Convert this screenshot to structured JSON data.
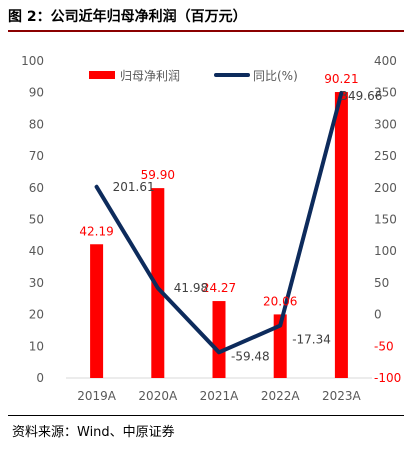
{
  "figure": {
    "title": "图 2：公司近年归母净利润（百万元）",
    "source": "资料来源：Wind、中原证券"
  },
  "colors": {
    "bar": "#ff0000",
    "line": "#0d2b5c",
    "left_axis_text": "#595959",
    "right_axis_text": "#595959",
    "right_axis_negative": "#ff0000",
    "bar_label": "#ff0000",
    "line_label": "#404040",
    "title_rule": "#8b0000"
  },
  "chart_data": {
    "type": "bar",
    "categories": [
      "2019A",
      "2020A",
      "2021A",
      "2022A",
      "2023A"
    ],
    "series": [
      {
        "name": "归母净利润",
        "type": "bar",
        "axis": "left",
        "values": [
          42.19,
          59.9,
          24.27,
          20.06,
          90.21
        ],
        "labels": [
          "42.19",
          "59.90",
          "24.27",
          "20.06",
          "90.21"
        ]
      },
      {
        "name": "同比(%)",
        "type": "line",
        "axis": "right",
        "values": [
          201.61,
          41.98,
          -59.48,
          -17.34,
          349.66
        ],
        "labels": [
          "201.61",
          "41.98",
          "-59.48",
          "-17.34",
          "349.66"
        ]
      }
    ],
    "left_axis": {
      "ylim": [
        0,
        100
      ],
      "ticks": [
        "0",
        "10",
        "20",
        "30",
        "40",
        "50",
        "60",
        "70",
        "80",
        "90",
        "100"
      ]
    },
    "right_axis": {
      "ylim": [
        -100,
        400
      ],
      "ticks": [
        "-100",
        "-50",
        "0",
        "50",
        "100",
        "150",
        "200",
        "250",
        "300",
        "350",
        "400"
      ]
    },
    "legend": {
      "position": "top",
      "items": [
        "归母净利润",
        "同比(%)"
      ]
    },
    "grid": false
  }
}
